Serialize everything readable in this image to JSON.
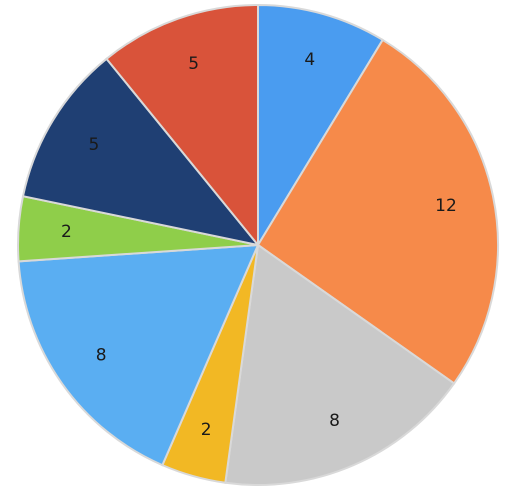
{
  "chart_data": {
    "type": "pie",
    "title": "",
    "start_angle_deg": 0,
    "direction": "clockwise",
    "slices": [
      {
        "value": 4,
        "label": "4",
        "color": "#4a9cf0"
      },
      {
        "value": 12,
        "label": "12",
        "color": "#f68a4a"
      },
      {
        "value": 8,
        "label": "8",
        "color": "#c9c9c9"
      },
      {
        "value": 2,
        "label": "2",
        "color": "#f2b824"
      },
      {
        "value": 8,
        "label": "8",
        "color": "#5aaef2"
      },
      {
        "value": 2,
        "label": "2",
        "color": "#8fce4a"
      },
      {
        "value": 5,
        "label": "5",
        "color": "#1f3f73"
      },
      {
        "value": 5,
        "label": "5",
        "color": "#d9533a"
      }
    ]
  }
}
